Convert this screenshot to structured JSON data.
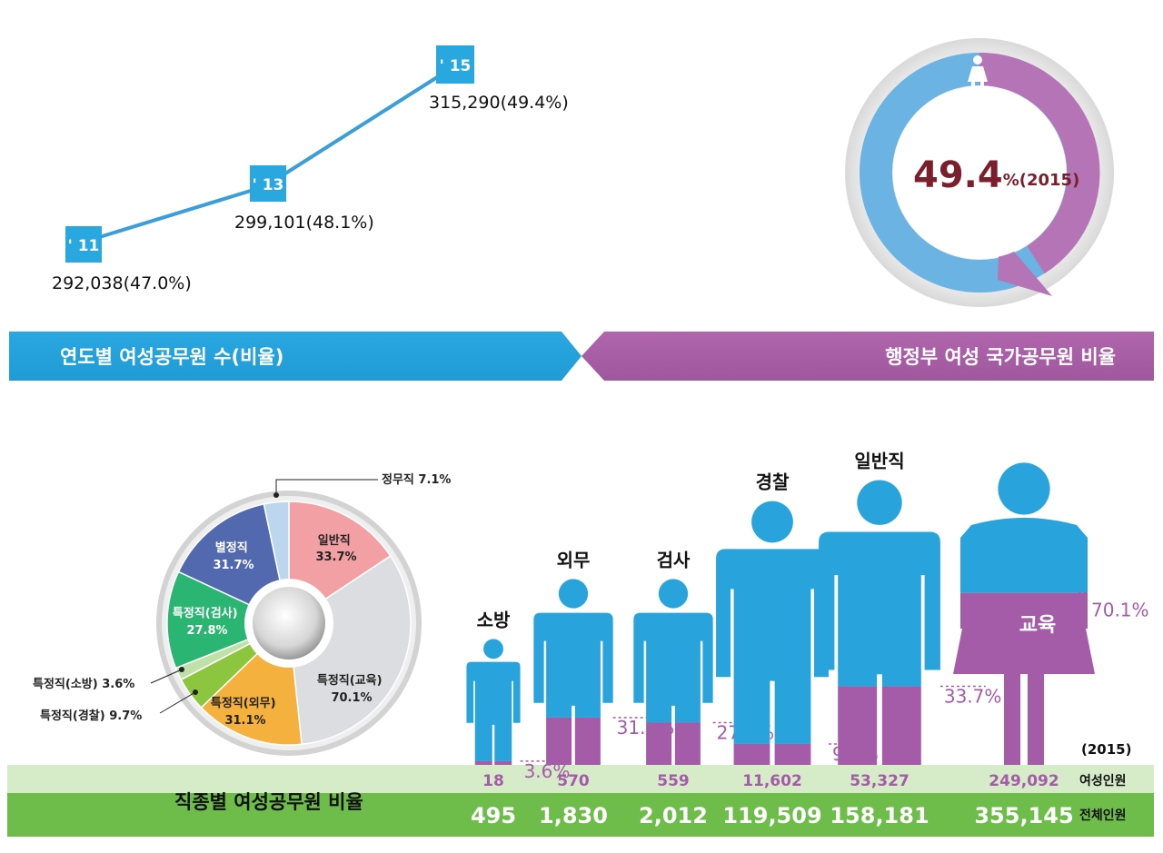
{
  "line_chart": {
    "points": [
      {
        "label": "' 11",
        "text": "292,038(47.0%)"
      },
      {
        "label": "' 13",
        "text": "299,101(48.1%)"
      },
      {
        "label": "' 15",
        "text": "315,290(49.4%)"
      }
    ],
    "caption": "연도별 여성공무원 수(비율)",
    "colors": {
      "line": "#3a9fd8",
      "marker": "#29a8e0"
    }
  },
  "donut": {
    "value_big": "49.4",
    "value_suffix": "%(2015)",
    "caption": "행정부 여성 국가공무원 비율",
    "icon": "woman-icon",
    "colors": {
      "female": "#b06fb0",
      "male": "#6bb3e3",
      "text": "#7a1f2b"
    }
  },
  "pie": {
    "callouts": {
      "jeongmu": "정무직 7.1%",
      "sobang": "특정직(소방) 3.6%",
      "gyeongchal": "특정직(경찰) 9.7%"
    },
    "labels": [
      {
        "name": "일반직",
        "pct": "33.7%"
      },
      {
        "name": "특정직(교육)",
        "pct": "70.1%"
      },
      {
        "name": "특정직(외무)",
        "pct": "31.1%"
      },
      {
        "name": "특정직(검사)",
        "pct": "27.8%"
      },
      {
        "name": "별정직",
        "pct": "31.7%"
      }
    ]
  },
  "people": {
    "year": "(2015)",
    "row_female_label": "여성인원",
    "row_total_label": "전체인원",
    "caption": "직종별 여성공무원 비율",
    "colors": {
      "male": "#29a3dc",
      "female": "#a45ba8",
      "row_female": "#d6ecc9",
      "row_total": "#6ebd4a"
    }
  },
  "chart_data": [
    {
      "type": "line",
      "x": [
        "' 11",
        "' 13",
        "' 15"
      ],
      "series": [
        {
          "values": [
            292038,
            299101,
            315290
          ]
        }
      ],
      "percent": [
        47.0,
        48.1,
        49.4
      ],
      "title": "연도별 여성공무원 수(비율)"
    },
    {
      "type": "pie",
      "title": "행정부 여성 국가공무원 비율",
      "values": [
        49.4
      ],
      "annotation": "49.4%(2015)"
    },
    {
      "type": "pie",
      "categories": [
        "일반직",
        "특정직(교육)",
        "특정직(외무)",
        "특정직(경찰)",
        "특정직(소방)",
        "특정직(검사)",
        "별정직",
        "정무직"
      ],
      "values": [
        33.7,
        70.1,
        31.1,
        9.7,
        3.6,
        27.8,
        31.7,
        7.1
      ],
      "colors": [
        "#f2a0a3",
        "#dcdde0",
        "#f5b13d",
        "#8cc63f",
        "#bfe0a6",
        "#2bb573",
        "#5269b0",
        "#bcd6f0"
      ]
    },
    {
      "type": "bar",
      "title": "직종별 여성공무원 비율",
      "categories": [
        "소방",
        "외무",
        "검사",
        "경찰",
        "일반직",
        "교육"
      ],
      "series": [
        {
          "name": "여성인원",
          "values": [
            18,
            570,
            559,
            11602,
            53327,
            249092
          ]
        },
        {
          "name": "전체인원",
          "values": [
            495,
            1830,
            2012,
            119509,
            158181,
            355145
          ]
        }
      ],
      "percent_labels": [
        "3.6%",
        "31.1%",
        "27.8%",
        "9.7%",
        "33.7%",
        "70.1%"
      ],
      "female_display": [
        "18",
        "570",
        "559",
        "11,602",
        "53,327",
        "249,092"
      ],
      "total_display": [
        "495",
        "1,830",
        "2,012",
        "119,509",
        "158,181",
        "355,145"
      ]
    }
  ]
}
